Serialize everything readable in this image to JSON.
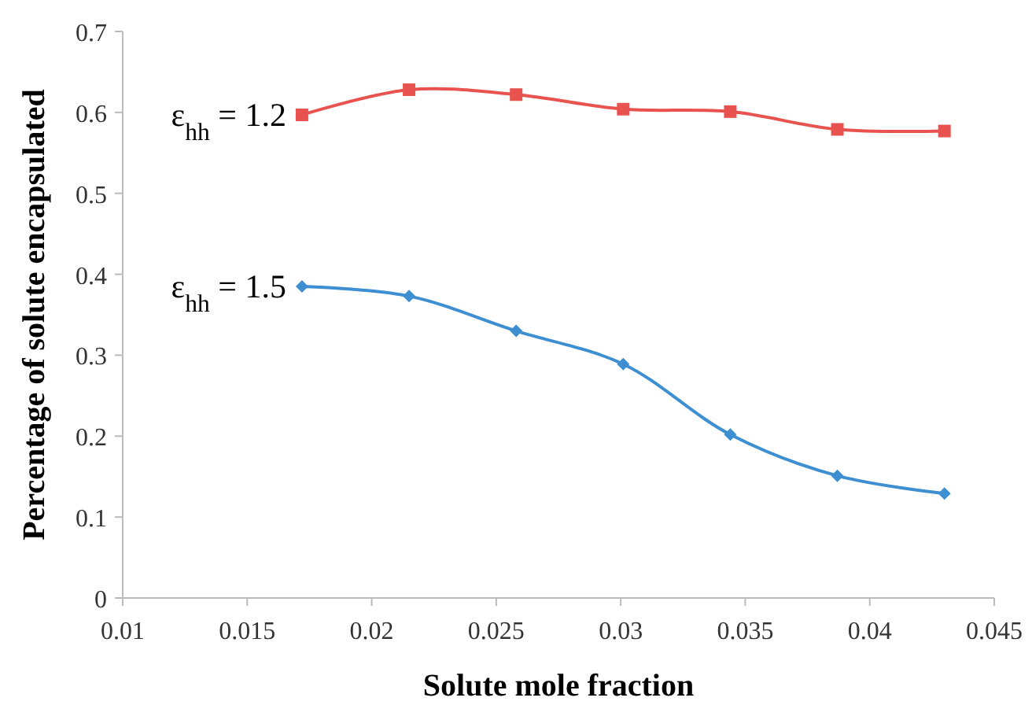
{
  "chart_data": {
    "type": "line",
    "xlabel": "Solute mole fraction",
    "ylabel": "Percentage  of solute encapsulated",
    "x": [
      0.0172,
      0.0215,
      0.0258,
      0.0301,
      0.0344,
      0.0387,
      0.043
    ],
    "series": [
      {
        "name": "ε$_{hh}$ = 1.2",
        "color": "#e8534f",
        "marker": "square",
        "values": [
          0.597,
          0.628,
          0.622,
          0.604,
          0.601,
          0.579,
          0.577
        ]
      },
      {
        "name": "ε$_{hh}$ = 1.5",
        "color": "#3d8fd1",
        "marker": "diamond",
        "values": [
          0.385,
          0.373,
          0.33,
          0.289,
          0.202,
          0.151,
          0.129
        ]
      }
    ],
    "xlim": [
      0.01,
      0.045
    ],
    "xticks": [
      0.01,
      0.015,
      0.02,
      0.025,
      0.03,
      0.035,
      0.04,
      0.045
    ],
    "ylim": [
      0,
      0.7
    ],
    "yticks": [
      0,
      0.1,
      0.2,
      0.3,
      0.4,
      0.5,
      0.6,
      0.7
    ],
    "grid": false
  }
}
